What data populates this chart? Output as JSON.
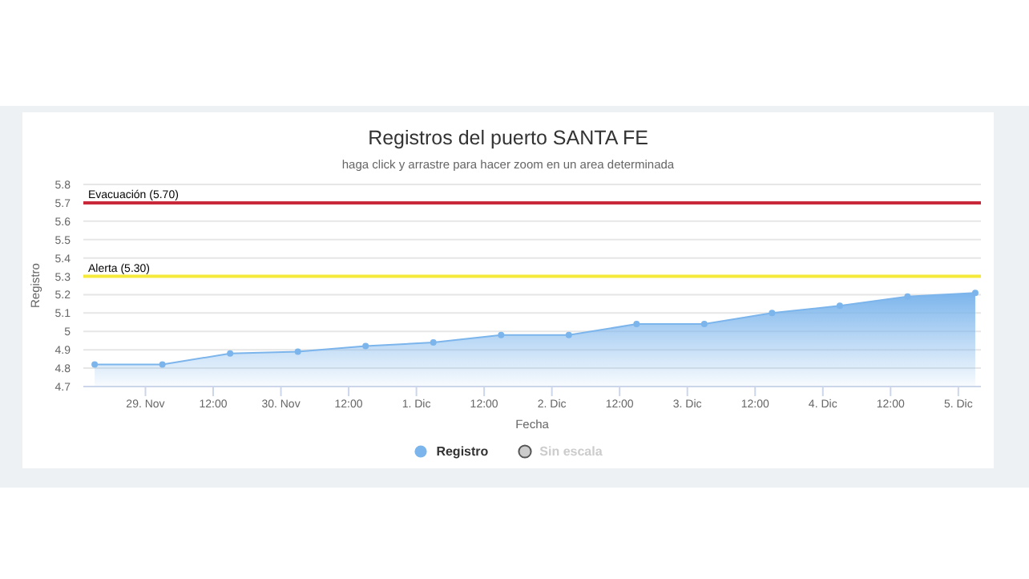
{
  "chart_data": {
    "type": "area",
    "title": "Registros del puerto SANTA FE",
    "subtitle": "haga click y arrastre para hacer zoom en un area determinada",
    "xlabel": "Fecha",
    "ylabel": "Registro",
    "x": [
      "--11-28T15:00",
      "--11-29T03:00",
      "--11-29T15:00",
      "--11-30T03:00",
      "--11-30T15:00",
      "--12-01T03:00",
      "--12-01T15:00",
      "--12-02T03:00",
      "--12-02T15:00",
      "--12-03T03:00",
      "--12-03T15:00",
      "--12-04T03:00",
      "--12-04T15:00",
      "--12-05T03:00"
    ],
    "series": [
      {
        "name": "Registro",
        "color": "#7cb5ec",
        "values": [
          4.82,
          4.82,
          4.88,
          4.89,
          4.92,
          4.94,
          4.98,
          4.98,
          5.04,
          5.04,
          5.1,
          5.14,
          5.19,
          5.21
        ]
      },
      {
        "name": "Sin escala",
        "color": "#cccccc",
        "values": [
          null,
          null,
          null,
          null,
          null,
          null,
          null,
          null,
          null,
          null,
          null,
          null,
          null,
          null
        ]
      }
    ],
    "xlim": [
      "--11-28T13:00",
      "--12-05T04:00"
    ],
    "xticks": [
      {
        "value": "--11-29",
        "label": "29. Nov"
      },
      {
        "value": "--11-29T12:00",
        "label": "12:00"
      },
      {
        "value": "--11-30",
        "label": "30. Nov"
      },
      {
        "value": "--11-30T12:00",
        "label": "12:00"
      },
      {
        "value": "--12-01",
        "label": "1. Dic"
      },
      {
        "value": "--12-01T12:00",
        "label": "12:00"
      },
      {
        "value": "--12-02",
        "label": "2. Dic"
      },
      {
        "value": "--12-02T12:00",
        "label": "12:00"
      },
      {
        "value": "--12-03",
        "label": "3. Dic"
      },
      {
        "value": "--12-03T12:00",
        "label": "12:00"
      },
      {
        "value": "--12-04",
        "label": "4. Dic"
      },
      {
        "value": "--12-04T12:00",
        "label": "12:00"
      },
      {
        "value": "--12-05",
        "label": "5. Dic"
      }
    ],
    "ylim": [
      4.7,
      5.8
    ],
    "yticks": [
      4.7,
      4.8,
      4.9,
      5,
      5.1,
      5.2,
      5.3,
      5.4,
      5.5,
      5.6,
      5.7,
      5.8
    ],
    "ref_lines": [
      {
        "axis": "y",
        "value": 5.7,
        "label": "Evacuación (5.70)",
        "color": "#c9283a"
      },
      {
        "axis": "y",
        "value": 5.3,
        "label": "Alerta (5.30)",
        "color": "#f5ea3a"
      }
    ],
    "grid": "y",
    "legend": "bottom",
    "marker": "circle"
  }
}
